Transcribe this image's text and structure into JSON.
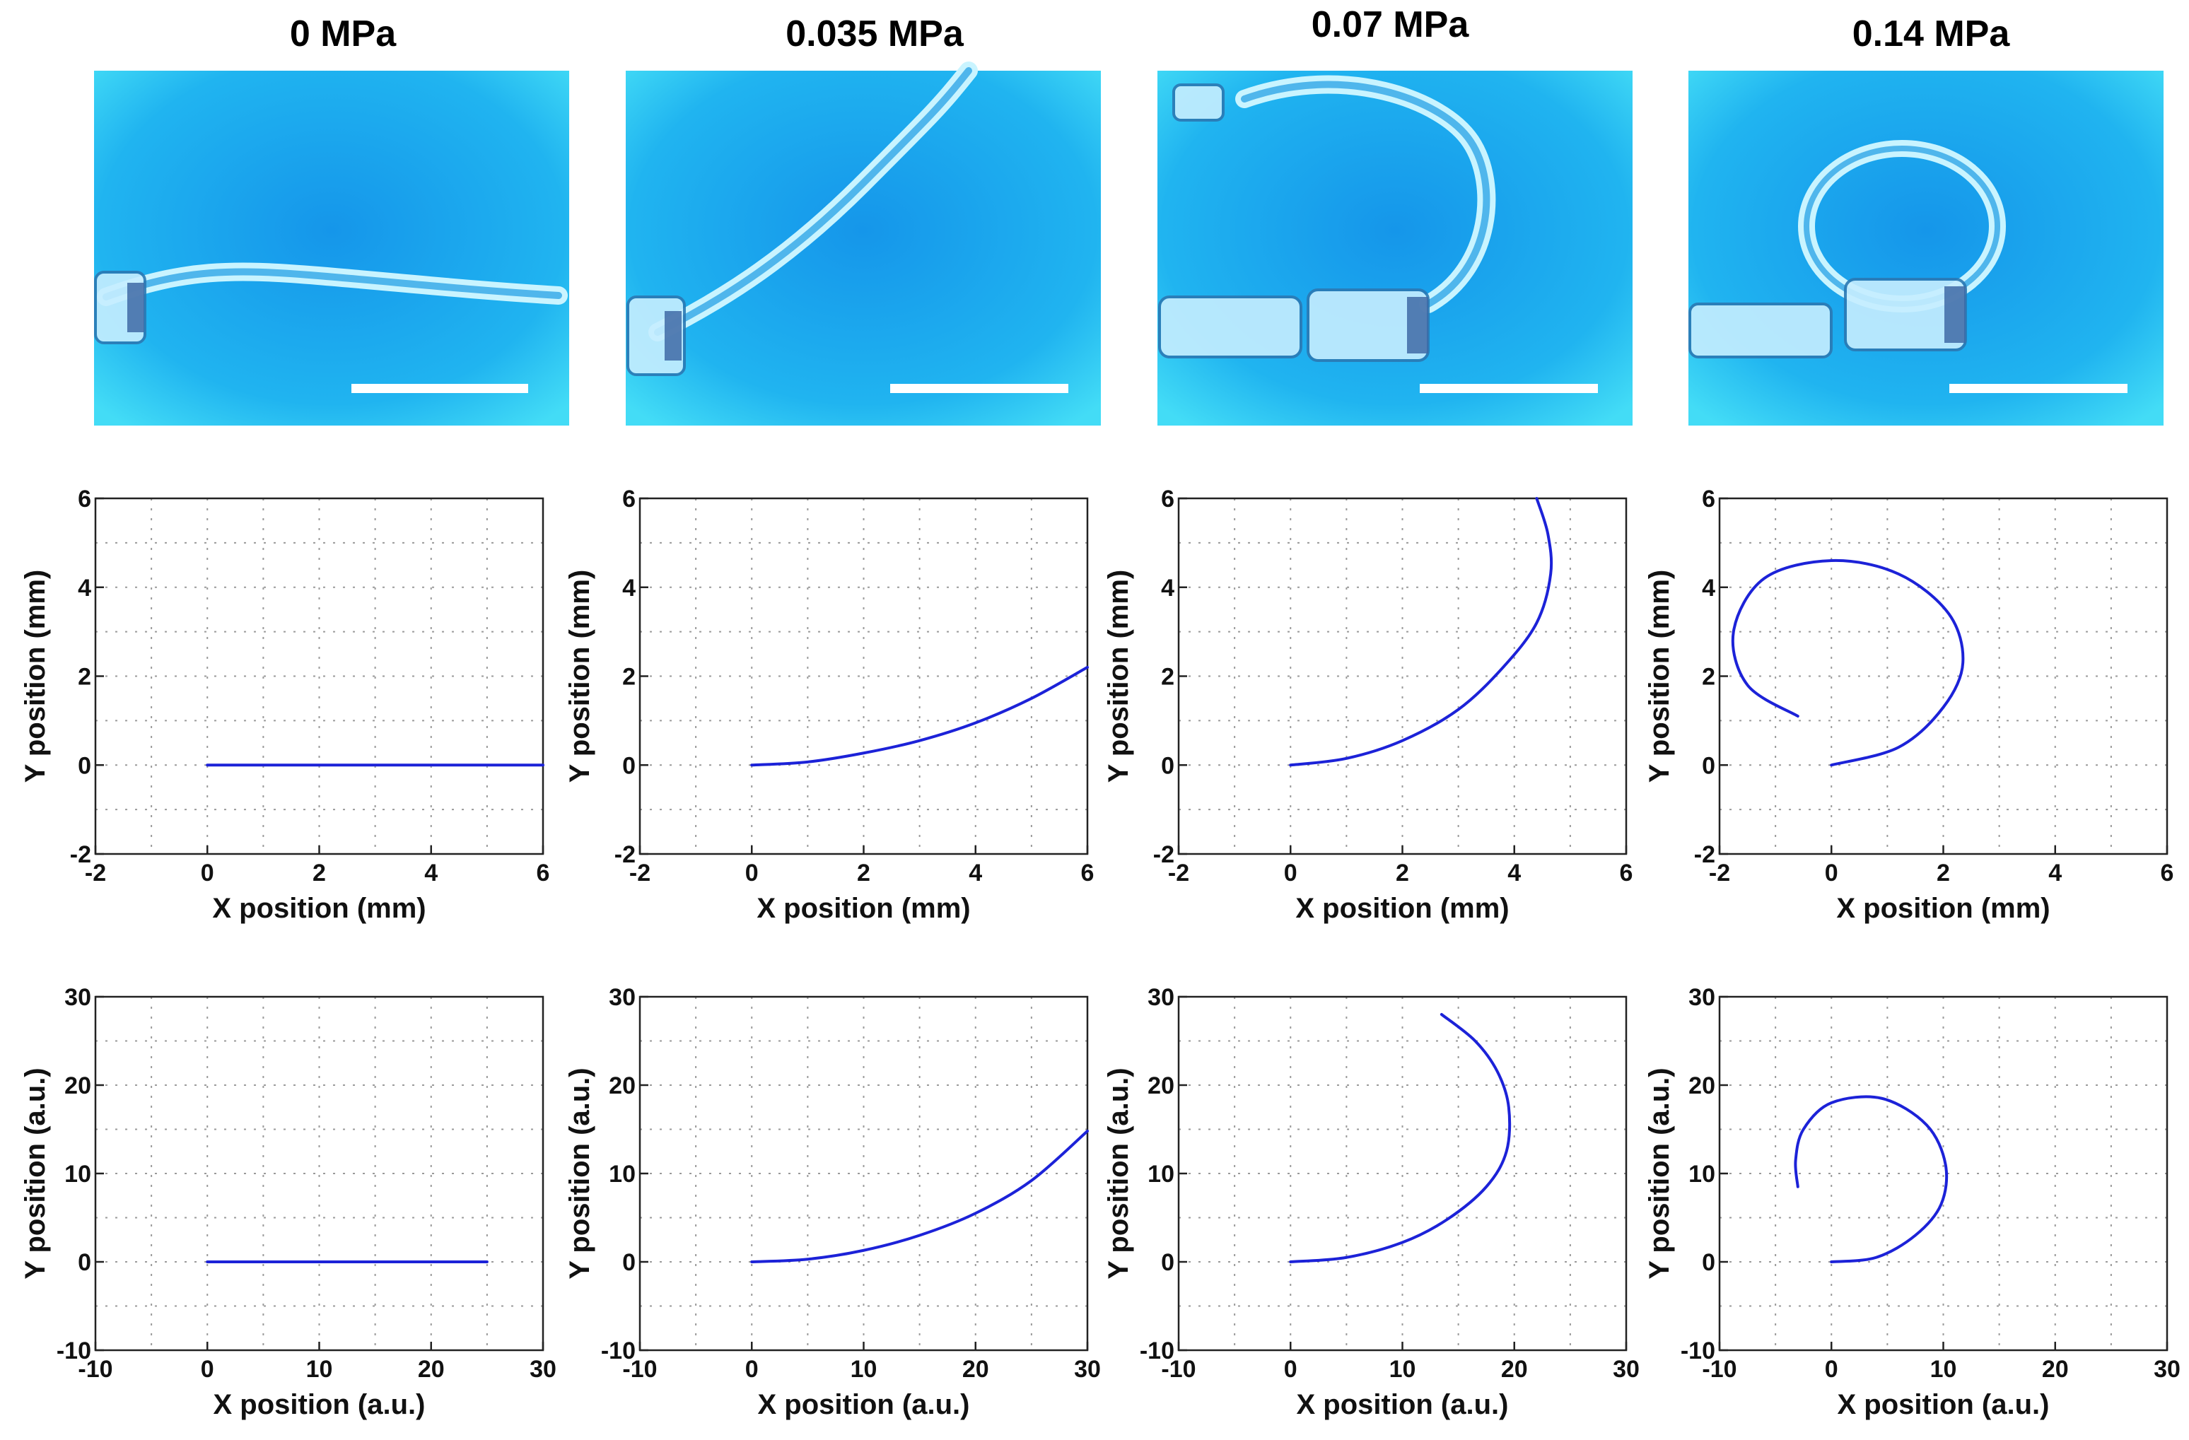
{
  "columns": [
    {
      "title": "0 MPa"
    },
    {
      "title": "0.035 MPa"
    },
    {
      "title": "0.07 MPa"
    },
    {
      "title": "0.14 MPa"
    }
  ],
  "colors": {
    "curve": "#1c22d8",
    "photo_background": "#1aa0ee",
    "scale_bar": "#ffffff"
  },
  "chart_data": [
    {
      "panel": "experimental",
      "type": "line",
      "xlabel": "X position (mm)",
      "ylabel": "Y position (mm)",
      "xlim": [
        -2,
        6
      ],
      "ylim": [
        -2,
        6
      ],
      "xticks": [
        -2,
        0,
        2,
        4,
        6
      ],
      "yticks": [
        -2,
        0,
        2,
        4,
        6
      ],
      "grid": true,
      "series": [
        {
          "column": "0 MPa",
          "x": [
            0,
            1,
            2,
            3,
            4,
            5,
            6
          ],
          "y": [
            0,
            0,
            0,
            0,
            0,
            0,
            0
          ]
        },
        {
          "column": "0.035 MPa",
          "x": [
            0,
            1,
            2,
            3,
            4,
            5,
            6
          ],
          "y": [
            0,
            0.07,
            0.27,
            0.55,
            0.95,
            1.5,
            2.2
          ]
        },
        {
          "column": "0.07 MPa",
          "x": [
            0,
            1,
            2,
            3,
            3.8,
            4.4,
            4.65,
            4.6,
            4.4
          ],
          "y": [
            0,
            0.15,
            0.55,
            1.25,
            2.2,
            3.2,
            4.3,
            5.2,
            6
          ]
        },
        {
          "column": "0.14 MPa",
          "x": [
            0,
            1.2,
            2,
            2.35,
            2.1,
            1.2,
            0,
            -1.2,
            -1.75,
            -1.5,
            -0.6
          ],
          "y": [
            0,
            0.4,
            1.3,
            2.3,
            3.4,
            4.3,
            4.6,
            4.2,
            3.0,
            1.8,
            1.1
          ]
        }
      ]
    },
    {
      "panel": "model",
      "type": "line",
      "xlabel": "X position (a.u.)",
      "ylabel": "Y position (a.u.)",
      "xlim": [
        -10,
        30
      ],
      "ylim": [
        -10,
        30
      ],
      "xticks": [
        -10,
        0,
        10,
        20,
        30
      ],
      "yticks": [
        -10,
        0,
        10,
        20,
        30
      ],
      "grid": true,
      "series": [
        {
          "column": "0 MPa",
          "x": [
            0,
            5,
            10,
            15,
            20,
            25
          ],
          "y": [
            0,
            0,
            0,
            0,
            0,
            0
          ]
        },
        {
          "column": "0.035 MPa",
          "x": [
            0,
            5,
            10,
            15,
            20,
            25,
            30
          ],
          "y": [
            0,
            0.3,
            1.3,
            3.0,
            5.5,
            9.2,
            14.8
          ]
        },
        {
          "column": "0.07 MPa",
          "x": [
            0,
            5,
            10,
            14,
            17.5,
            19.3,
            19.5,
            18.5,
            16.5,
            13.5
          ],
          "y": [
            0,
            0.5,
            2.2,
            4.8,
            8.5,
            12.5,
            17.5,
            21.5,
            25.0,
            28.0
          ]
        },
        {
          "column": "0.14 MPa",
          "x": [
            0,
            4,
            7.5,
            9.8,
            10.2,
            8.5,
            4.5,
            0,
            -2.5,
            -3.2,
            -3.0
          ],
          "y": [
            0,
            0.5,
            3.0,
            6.5,
            11.0,
            15.5,
            18.5,
            18.0,
            15.0,
            11.5,
            8.5
          ]
        }
      ]
    }
  ]
}
